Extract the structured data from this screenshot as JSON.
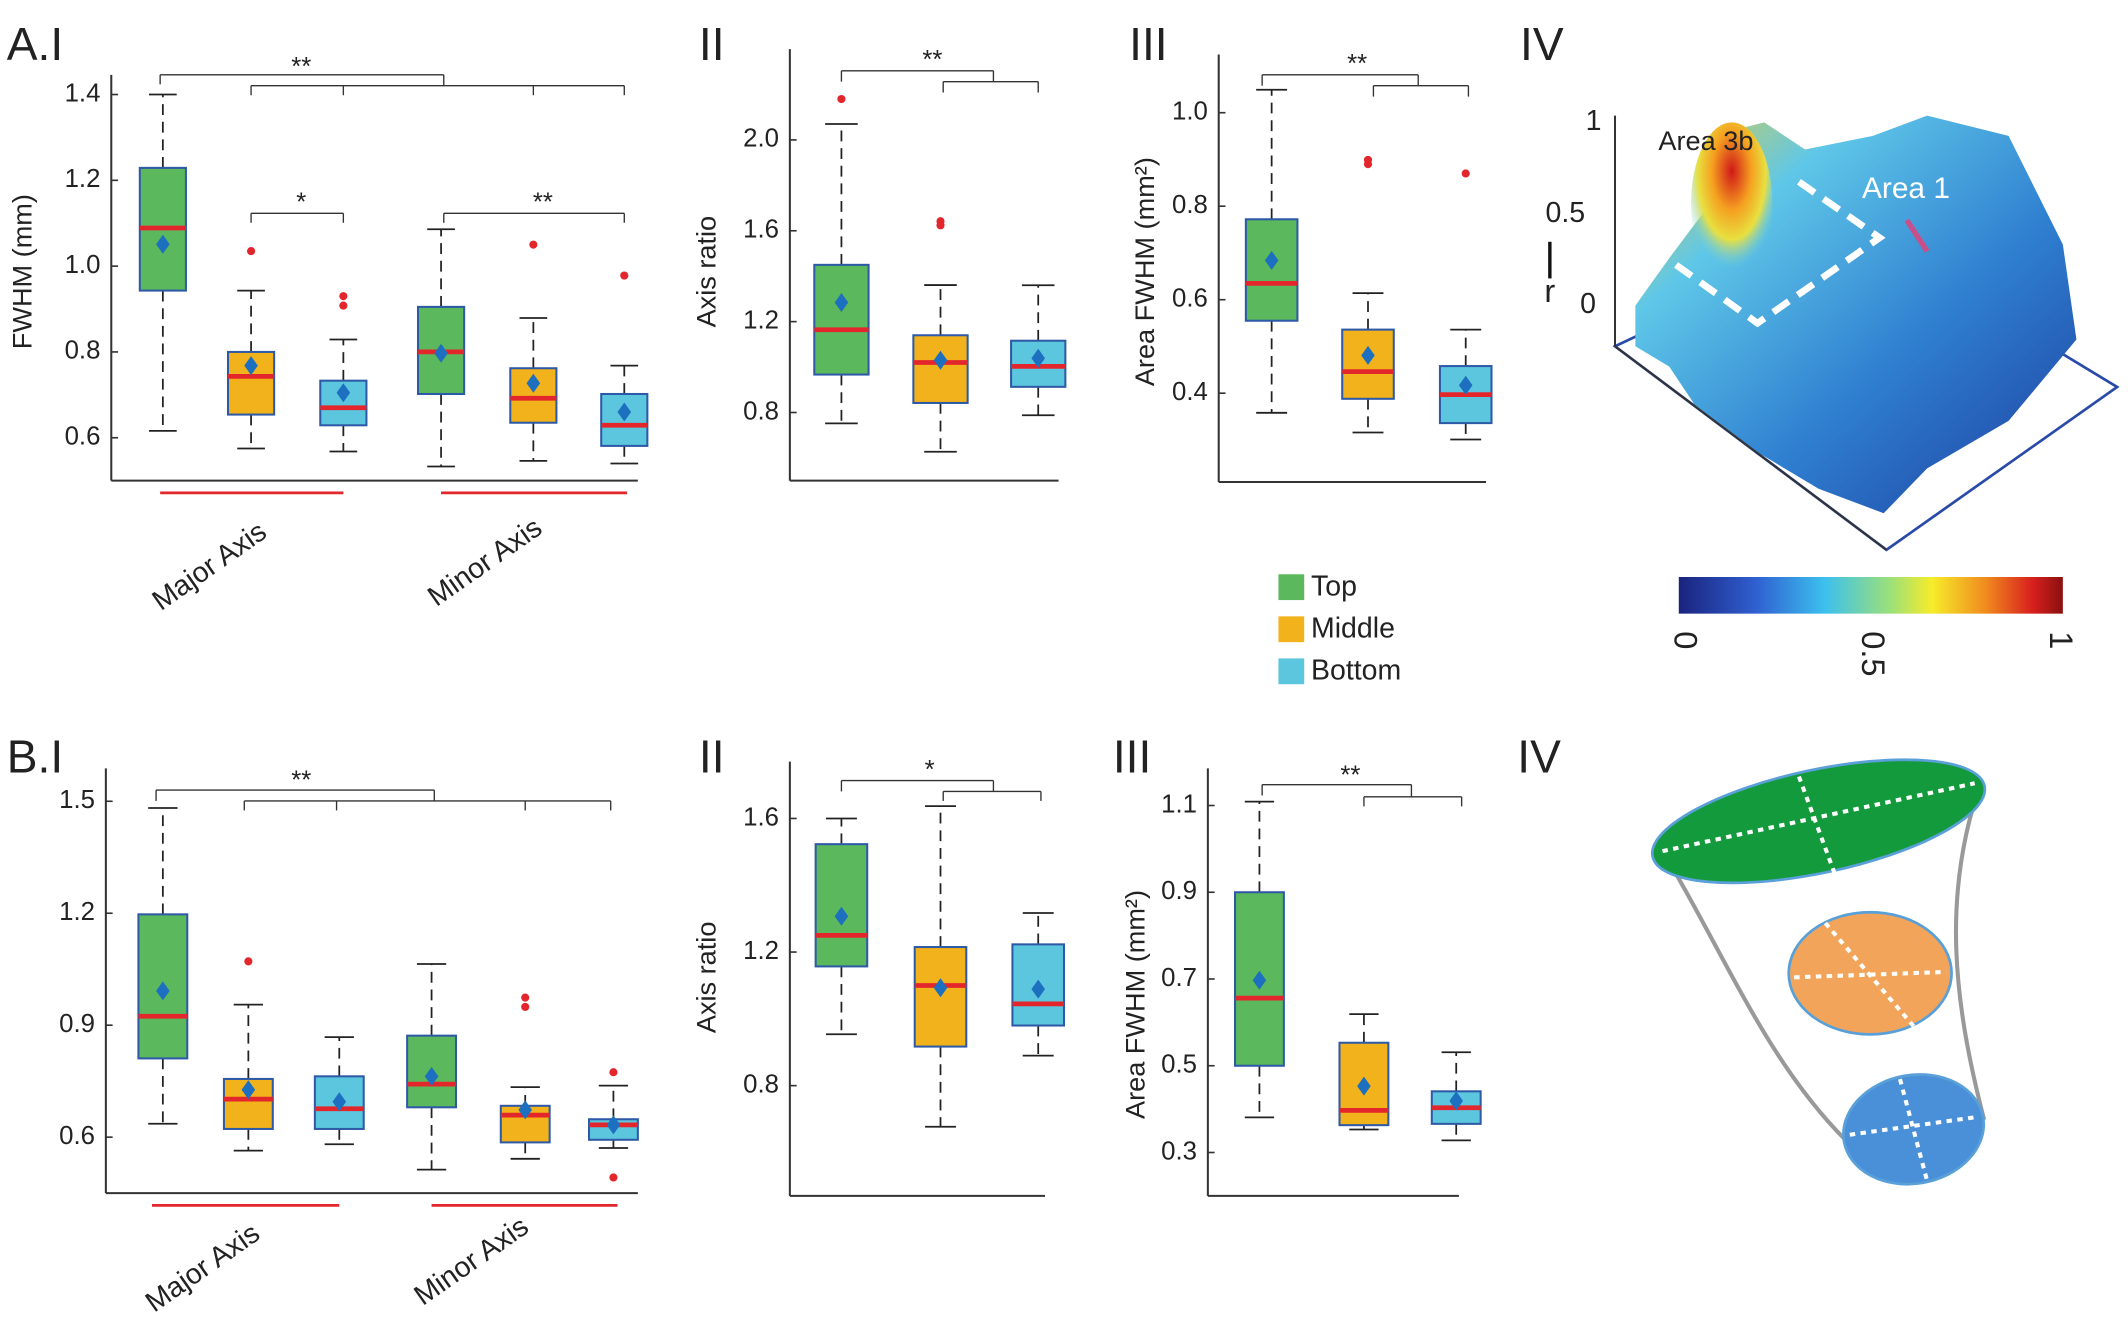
{
  "chart_data": [
    {
      "type": "box",
      "panel": "A.I",
      "ylabel": "FWHM (mm)",
      "categories": [
        "Major Axis",
        "Minor Axis"
      ],
      "annotations": [
        "**",
        "*",
        "**"
      ],
      "ylim": [
        0.5,
        1.43
      ],
      "yticks": [
        0.6,
        0.8,
        {
          "value": 1,
          "label": "1.0"
        },
        1.2,
        1.4
      ],
      "boxes": [
        {
          "color": "#5cb85c",
          "whisker_low": 0.616,
          "q1": 0.943,
          "median": 1.089,
          "q3": 1.229,
          "whisker_high": 1.4,
          "mean": 1.051,
          "outliers": []
        },
        {
          "color": "#f2b21b",
          "whisker_low": 0.575,
          "q1": 0.654,
          "median": 0.743,
          "q3": 0.8,
          "whisker_high": 0.943,
          "mean": 0.768,
          "outliers": [
            1.035
          ]
        },
        {
          "color": "#5bc6de",
          "whisker_low": 0.568,
          "q1": 0.629,
          "median": 0.67,
          "q3": 0.733,
          "whisker_high": 0.829,
          "mean": 0.705,
          "outliers": [
            0.93,
            0.908
          ]
        },
        {
          "color": "#5cb85c",
          "whisker_low": 0.533,
          "q1": 0.702,
          "median": 0.8,
          "q3": 0.905,
          "whisker_high": 1.086,
          "mean": 0.797,
          "outliers": []
        },
        {
          "color": "#f2b21b",
          "whisker_low": 0.546,
          "q1": 0.635,
          "median": 0.692,
          "q3": 0.762,
          "whisker_high": 0.879,
          "mean": 0.727,
          "outliers": [
            1.05
          ]
        },
        {
          "color": "#5bc6de",
          "whisker_low": 0.54,
          "q1": 0.581,
          "median": 0.629,
          "q3": 0.702,
          "whisker_high": 0.768,
          "mean": 0.66,
          "outliers": [
            0.978
          ]
        }
      ]
    },
    {
      "type": "box",
      "panel": "II",
      "ylabel": "Axis ratio",
      "annotations": [
        "**"
      ],
      "ylim": [
        0.5,
        2.37
      ],
      "yticks": [
        0.8,
        1.2,
        1.6,
        {
          "value": 2,
          "label": "2.0"
        }
      ],
      "boxes": [
        {
          "color": "#5cb85c",
          "whisker_low": 0.752,
          "q1": 0.967,
          "median": 1.164,
          "q3": 1.45,
          "whisker_high": 2.07,
          "mean": 1.284,
          "outliers": [
            2.18
          ]
        },
        {
          "color": "#f2b21b",
          "whisker_low": 0.627,
          "q1": 0.842,
          "median": 1.02,
          "q3": 1.14,
          "whisker_high": 1.361,
          "mean": 1.03,
          "outliers": [
            1.642,
            1.624
          ]
        },
        {
          "color": "#5bc6de",
          "whisker_low": 0.788,
          "q1": 0.913,
          "median": 1.003,
          "q3": 1.116,
          "whisker_high": 1.36,
          "mean": 1.039,
          "outliers": []
        }
      ]
    },
    {
      "type": "box",
      "panel": "III",
      "ylabel": "Area FWHM (mm²)",
      "annotations": [
        "**"
      ],
      "ylim": [
        0.21,
        1.11
      ],
      "yticks": [
        0.4,
        0.6,
        0.8,
        {
          "value": 1,
          "label": "1.0"
        }
      ],
      "boxes": [
        {
          "color": "#5cb85c",
          "whisker_low": 0.358,
          "q1": 0.555,
          "median": 0.635,
          "q3": 0.772,
          "whisker_high": 1.049,
          "mean": 0.684,
          "outliers": []
        },
        {
          "color": "#f2b21b",
          "whisker_low": 0.316,
          "q1": 0.388,
          "median": 0.446,
          "q3": 0.536,
          "whisker_high": 0.614,
          "mean": 0.481,
          "outliers": [
            0.899,
            0.89
          ]
        },
        {
          "color": "#5bc6de",
          "whisker_low": 0.301,
          "q1": 0.336,
          "median": 0.397,
          "q3": 0.458,
          "whisker_high": 0.536,
          "mean": 0.417,
          "outliers": [
            0.87
          ]
        }
      ]
    },
    {
      "type": "box",
      "panel": "B.I",
      "categories": [
        "Major Axis",
        "Minor Axis"
      ],
      "annotations": [
        "**"
      ],
      "ylim": [
        0.45,
        1.57
      ],
      "yticks": [
        0.6,
        0.9,
        1.2,
        1.5
      ],
      "boxes": [
        {
          "color": "#5cb85c",
          "whisker_low": 0.636,
          "q1": 0.811,
          "median": 0.924,
          "q3": 1.197,
          "whisker_high": 1.482,
          "mean": 0.992,
          "outliers": []
        },
        {
          "color": "#f2b21b",
          "whisker_low": 0.564,
          "q1": 0.622,
          "median": 0.702,
          "q3": 0.756,
          "whisker_high": 0.955,
          "mean": 0.727,
          "outliers": [
            1.071
          ]
        },
        {
          "color": "#5bc6de",
          "whisker_low": 0.581,
          "q1": 0.622,
          "median": 0.676,
          "q3": 0.763,
          "whisker_high": 0.868,
          "mean": 0.695,
          "outliers": []
        },
        {
          "color": "#5cb85c",
          "whisker_low": 0.513,
          "q1": 0.68,
          "median": 0.742,
          "q3": 0.872,
          "whisker_high": 1.064,
          "mean": 0.763,
          "outliers": []
        },
        {
          "color": "#f2b21b",
          "whisker_low": 0.542,
          "q1": 0.586,
          "median": 0.659,
          "q3": 0.684,
          "whisker_high": 0.734,
          "mean": 0.673,
          "outliers": [
            0.974,
            0.949
          ]
        },
        {
          "color": "#5bc6de",
          "whisker_low": 0.571,
          "q1": 0.593,
          "median": 0.633,
          "q3": 0.648,
          "whisker_high": 0.738,
          "mean": 0.633,
          "outliers": [
            0.774,
            0.492
          ]
        }
      ]
    },
    {
      "type": "box",
      "panel": "II",
      "ylabel": "Axis ratio",
      "annotations": [
        "*"
      ],
      "ylim": [
        0.47,
        1.75
      ],
      "yticks": [
        0.8,
        1.2,
        1.6
      ],
      "boxes": [
        {
          "color": "#5cb85c",
          "whisker_low": 0.954,
          "q1": 1.157,
          "median": 1.25,
          "q3": 1.523,
          "whisker_high": 1.6,
          "mean": 1.307,
          "outliers": []
        },
        {
          "color": "#f2b21b",
          "whisker_low": 0.677,
          "q1": 0.917,
          "median": 1.1,
          "q3": 1.215,
          "whisker_high": 1.637,
          "mean": 1.093,
          "outliers": []
        },
        {
          "color": "#5bc6de",
          "whisker_low": 0.89,
          "q1": 0.98,
          "median": 1.045,
          "q3": 1.223,
          "whisker_high": 1.317,
          "mean": 1.089,
          "outliers": []
        }
      ]
    },
    {
      "type": "box",
      "panel": "III",
      "ylabel": "Area FWHM (mm²)",
      "annotations": [
        "**"
      ],
      "ylim": [
        0.2,
        1.17
      ],
      "yticks": [
        0.3,
        0.5,
        0.7,
        0.9,
        1.1
      ],
      "boxes": [
        {
          "color": "#5cb85c",
          "whisker_low": 0.381,
          "q1": 0.5,
          "median": 0.656,
          "q3": 0.9,
          "whisker_high": 1.109,
          "mean": 0.697,
          "outliers": []
        },
        {
          "color": "#f2b21b",
          "whisker_low": 0.353,
          "q1": 0.363,
          "median": 0.397,
          "q3": 0.553,
          "whisker_high": 0.619,
          "mean": 0.453,
          "outliers": []
        },
        {
          "color": "#5bc6de",
          "whisker_low": 0.328,
          "q1": 0.366,
          "median": 0.403,
          "q3": 0.441,
          "whisker_high": 0.531,
          "mean": 0.419,
          "outliers": []
        }
      ]
    }
  ],
  "box_style": {
    "edge": "#2d59a6",
    "median": "#e3262b",
    "mean": "#1d6fbf",
    "outlier": "#e3262b",
    "whisker": "#222222"
  },
  "legend": [
    {
      "name": "Top",
      "color": "#5cb85c"
    },
    {
      "name": "Middle",
      "color": "#f2b21b"
    },
    {
      "name": "Bottom",
      "color": "#5bc6de"
    }
  ],
  "surface": {
    "panel": "IV",
    "labels": [
      "Area 3b",
      "Area 1"
    ],
    "zticks": [
      "1",
      "0.5",
      "0"
    ],
    "axis_label": "r",
    "colorbar_ticks": [
      0,
      0.5,
      1
    ]
  },
  "diagram": {
    "panel": "IV"
  }
}
